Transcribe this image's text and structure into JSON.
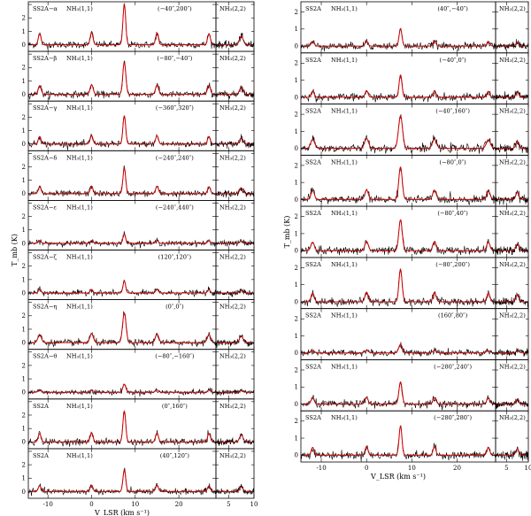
{
  "chart_data": [
    {
      "type": "line",
      "column": "left",
      "xlabel": "V_LSR (km s⁻¹)",
      "ylabel": "T_mb (K)",
      "main_xlim": [
        -14.5,
        28.5
      ],
      "main_xticks": [
        -10,
        0,
        10,
        20
      ],
      "side_xlim": [
        2.5,
        10
      ],
      "side_xticks": [
        5,
        10
      ],
      "ylim": [
        -0.5,
        3.2
      ],
      "yticks": [
        0,
        1,
        2,
        3
      ],
      "series": [
        {
          "name": "data",
          "color": "#000000"
        },
        {
          "name": "fit",
          "color": "#d00000"
        }
      ],
      "panels": [
        {
          "source": "SS2A−α",
          "transition": "NH₃(1,1)",
          "offset": "(−40″,200″)",
          "side": "NH₃(2,2)",
          "peak": 3.0,
          "width": 0.32
        },
        {
          "source": "SS2A−β",
          "transition": "NH₃(1,1)",
          "offset": "(−80″,−40″)",
          "side": "NH₃(2,2)",
          "peak": 2.4,
          "width": 0.35
        },
        {
          "source": "SS2A−γ",
          "transition": "NH₃(1,1)",
          "offset": "(−360″,320″)",
          "side": "NH₃(2,2)",
          "peak": 2.1,
          "width": 0.32
        },
        {
          "source": "SS2A−δ",
          "transition": "NH₃(1,1)",
          "offset": "(−240″,240″)",
          "side": "NH₃(2,2)",
          "peak": 1.9,
          "width": 0.32
        },
        {
          "source": "SS2A−ε",
          "transition": "NH₃(1,1)",
          "offset": "(−240″,440″)",
          "side": "NH₃(2,2)",
          "peak": 0.7,
          "width": 0.3
        },
        {
          "source": "SS2A−ζ",
          "transition": "NH₃(1,1)",
          "offset": "(120″,120″)",
          "side": "NH₃(2,2)",
          "peak": 0.9,
          "width": 0.3
        },
        {
          "source": "SS2A−η",
          "transition": "NH₃(1,1)",
          "offset": "(0″,0″)",
          "side": "NH₃(2,2)",
          "peak": 2.2,
          "width": 0.4
        },
        {
          "source": "SS2A−θ",
          "transition": "NH₃(1,1)",
          "offset": "(−80″,−160″)",
          "side": "NH₃(2,2)",
          "peak": 0.6,
          "width": 0.35
        },
        {
          "source": "SS2A",
          "transition": "NH₃(1,1)",
          "offset": "(0″,160″)",
          "side": "NH₃(2,2)",
          "peak": 2.3,
          "width": 0.32
        },
        {
          "source": "SS2A",
          "transition": "NH₃(1,1)",
          "offset": "(40″,120″)",
          "side": "NH₃(2,2)",
          "peak": 1.6,
          "width": 0.32
        }
      ]
    },
    {
      "type": "line",
      "column": "right",
      "xlabel": "V_LSR (km s⁻¹)",
      "ylabel": "T_mb (K)",
      "main_xlim": [
        -14.5,
        28.5
      ],
      "main_xticks": [
        -10,
        0,
        10,
        20
      ],
      "side_xlim": [
        2.5,
        10
      ],
      "side_xticks": [
        5,
        10
      ],
      "ylim": [
        -0.4,
        2.6
      ],
      "yticks": [
        0,
        1,
        2
      ],
      "series": [
        {
          "name": "data",
          "color": "#000000"
        },
        {
          "name": "fit",
          "color": "#d00000"
        }
      ],
      "panels": [
        {
          "source": "SS2A",
          "transition": "NH₃(1,1)",
          "offset": "(40″,−40″)",
          "side": "NH₃(2,2)",
          "peak": 1.0,
          "width": 0.32
        },
        {
          "source": "SS2A",
          "transition": "NH₃(1,1)",
          "offset": "(−40″,0″)",
          "side": "NH₃(2,2)",
          "peak": 1.3,
          "width": 0.32
        },
        {
          "source": "SS2A",
          "transition": "NH₃(1,1)",
          "offset": "(−40″,160″)",
          "side": "NH₃(2,2)",
          "peak": 1.9,
          "width": 0.45
        },
        {
          "source": "SS2A",
          "transition": "NH₃(1,1)",
          "offset": "(−80″,0″)",
          "side": "NH₃(2,2)",
          "peak": 1.9,
          "width": 0.38
        },
        {
          "source": "SS2A",
          "transition": "NH₃(1,1)",
          "offset": "(−80″,40″)",
          "side": "NH₃(2,2)",
          "peak": 1.8,
          "width": 0.38
        },
        {
          "source": "SS2A",
          "transition": "NH₃(1,1)",
          "offset": "(−80″,200″)",
          "side": "NH₃(2,2)",
          "peak": 1.9,
          "width": 0.35
        },
        {
          "source": "SS2A",
          "transition": "NH₃(1,1)",
          "offset": "(160″,80″)",
          "side": "NH₃(2,2)",
          "peak": 0.5,
          "width": 0.4
        },
        {
          "source": "SS2A",
          "transition": "NH₃(1,1)",
          "offset": "(−280″,240″)",
          "side": "NH₃(2,2)",
          "peak": 1.3,
          "width": 0.35
        },
        {
          "source": "SS2A",
          "transition": "NH₃(1,1)",
          "offset": "(−280″,280″)",
          "side": "NH₃(2,2)",
          "peak": 1.7,
          "width": 0.32
        }
      ]
    }
  ]
}
